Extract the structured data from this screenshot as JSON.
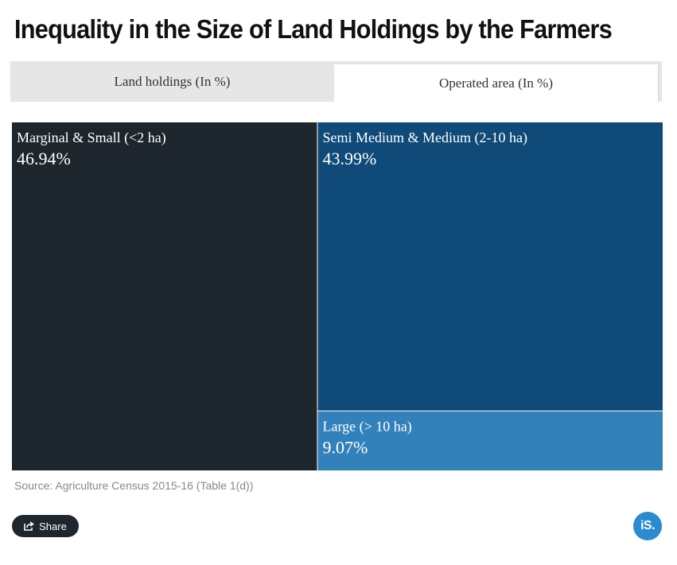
{
  "title": "Inequality in the Size of Land Holdings by the Farmers",
  "tabs": [
    {
      "label": "Land holdings (In %)",
      "active": false
    },
    {
      "label": "Operated area (In %)",
      "active": true
    }
  ],
  "chart_data": {
    "type": "treemap",
    "title": "Inequality in the Size of Land Holdings by the Farmers",
    "items": [
      {
        "name": "Marginal & Small (<2 ha)",
        "value": 46.94,
        "label": "46.94%",
        "color": "#1e262d"
      },
      {
        "name": "Semi Medium & Medium (2-10 ha)",
        "value": 43.99,
        "label": "43.99%",
        "color": "#0f4a78"
      },
      {
        "name": "Large (> 10 ha)",
        "value": 9.07,
        "label": "9.07%",
        "color": "#3281bb"
      }
    ]
  },
  "source": "Source: Agriculture Census 2015-16 (Table 1(d))",
  "share_label": "Share",
  "logo_text": "iS."
}
